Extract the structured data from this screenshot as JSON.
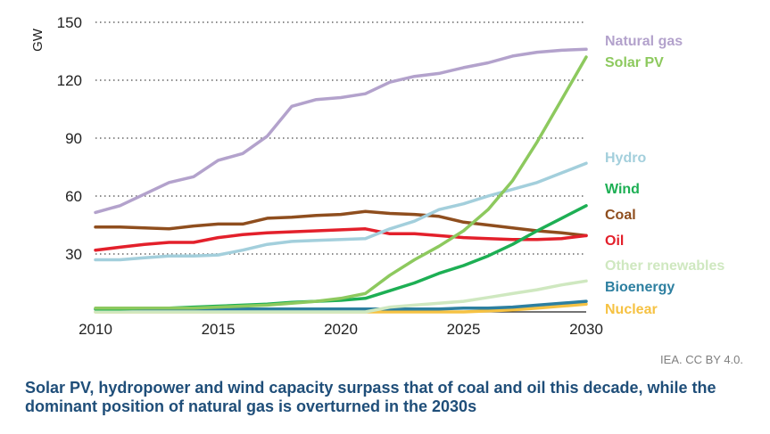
{
  "chart_data": {
    "type": "line",
    "title": "",
    "xlabel": "",
    "ylabel": "GW",
    "xlim": [
      2010,
      2030
    ],
    "ylim": [
      0,
      150
    ],
    "x_ticks": [
      2010,
      2015,
      2020,
      2025,
      2030
    ],
    "y_ticks": [
      30,
      60,
      90,
      120,
      150
    ],
    "grid": "horizontal dotted",
    "legend": "labels at right end of lines",
    "x": [
      2010,
      2011,
      2012,
      2013,
      2014,
      2015,
      2016,
      2017,
      2018,
      2019,
      2020,
      2021,
      2022,
      2023,
      2024,
      2025,
      2026,
      2027,
      2028,
      2029,
      2030
    ],
    "series": [
      {
        "name": "Natural gas",
        "color": "#b3a2cc",
        "values": [
          51.5,
          55,
          61,
          67,
          70,
          78.5,
          82,
          91,
          106.5,
          110,
          111,
          113,
          119,
          122,
          123.5,
          126.5,
          129,
          132.5,
          134.5,
          135.5,
          136
        ]
      },
      {
        "name": "Solar PV",
        "color": "#8dc95e",
        "values": [
          2,
          2,
          2,
          2,
          2,
          2.5,
          3,
          3.5,
          4.5,
          5.5,
          7,
          9.5,
          19,
          27,
          34,
          42,
          53,
          68,
          88,
          110,
          132
        ]
      },
      {
        "name": "Hydro",
        "color": "#a3cfdc",
        "values": [
          27,
          27,
          28,
          29,
          29,
          29.5,
          32,
          35,
          36.5,
          37,
          37.5,
          38,
          43,
          47,
          53,
          56,
          60,
          63.5,
          67,
          72,
          77
        ]
      },
      {
        "name": "Wind",
        "color": "#1daf54",
        "values": [
          1.5,
          1.5,
          2,
          2,
          2.5,
          3,
          3.5,
          4,
          5,
          5.5,
          6,
          7,
          11,
          15,
          20,
          24,
          29,
          35,
          42,
          48.5,
          55
        ]
      },
      {
        "name": "Coal",
        "color": "#8f4e1e",
        "values": [
          44,
          44,
          43.5,
          43,
          44.5,
          45.5,
          45.5,
          48.5,
          49,
          50,
          50.5,
          52,
          51,
          50.5,
          49.5,
          46.5,
          45,
          43.5,
          42,
          41,
          39.5
        ]
      },
      {
        "name": "Oil",
        "color": "#e3202b",
        "values": [
          32,
          33.5,
          35,
          36,
          36,
          38.5,
          40,
          41,
          41.5,
          42,
          42.5,
          43,
          40.5,
          40.5,
          39.5,
          38.5,
          38,
          37.5,
          37.5,
          38,
          39.5
        ]
      },
      {
        "name": "Other renewables",
        "color": "#cfe8c0",
        "values": [
          0,
          0,
          0,
          0,
          0,
          0,
          0,
          0,
          0,
          0,
          0,
          0,
          2.5,
          3.5,
          4.5,
          5.5,
          7.5,
          9.5,
          11.5,
          14,
          16
        ]
      },
      {
        "name": "Bioenergy",
        "color": "#2d7fa0",
        "values": [
          1.5,
          1.5,
          1.5,
          1.5,
          1.5,
          1.5,
          1.5,
          1.5,
          1.5,
          1.5,
          1.5,
          1.5,
          1.5,
          1.5,
          1.5,
          2,
          2,
          2.5,
          3.5,
          4.5,
          5.5
        ]
      },
      {
        "name": "Nuclear",
        "color": "#f6c243",
        "values": [
          0,
          0,
          0,
          0,
          0,
          0,
          0,
          0,
          0,
          0,
          0,
          0,
          0,
          0,
          0,
          0,
          0.5,
          1,
          2,
          3,
          4
        ]
      }
    ]
  },
  "credit": "IEA. CC BY 4.0.",
  "caption": "Solar PV, hydropower and wind capacity surpass that of coal and oil this decade, while the dominant position of natural gas is overturned in the 2030s"
}
